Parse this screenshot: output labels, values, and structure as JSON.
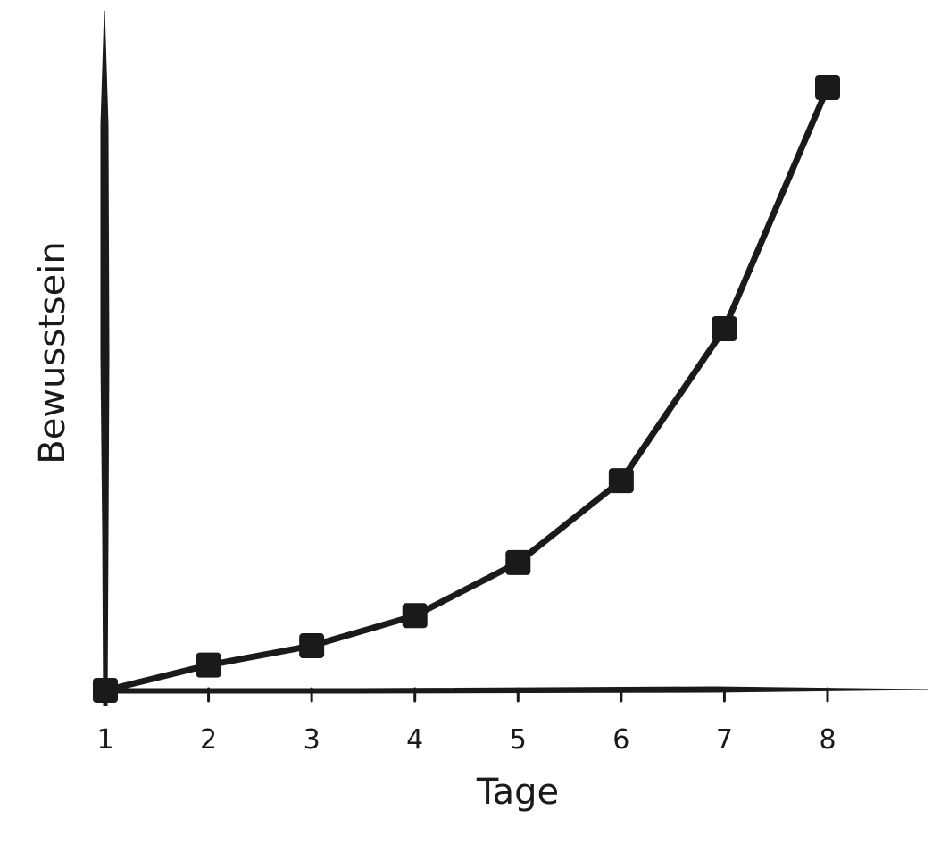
{
  "chart_data": {
    "type": "line",
    "xlabel": "Tage",
    "ylabel": "Bewusstsein",
    "categories": [
      "1",
      "2",
      "3",
      "4",
      "5",
      "6",
      "7",
      "8"
    ],
    "series": [
      {
        "values": [
          0,
          4.2,
          7.4,
          12.4,
          21.2,
          34.8,
          60.0,
          100.0
        ]
      }
    ],
    "ylim": [
      0,
      100
    ],
    "yticks_shown": false,
    "grid": false,
    "marker": "square",
    "color": "#1a1a1a"
  }
}
